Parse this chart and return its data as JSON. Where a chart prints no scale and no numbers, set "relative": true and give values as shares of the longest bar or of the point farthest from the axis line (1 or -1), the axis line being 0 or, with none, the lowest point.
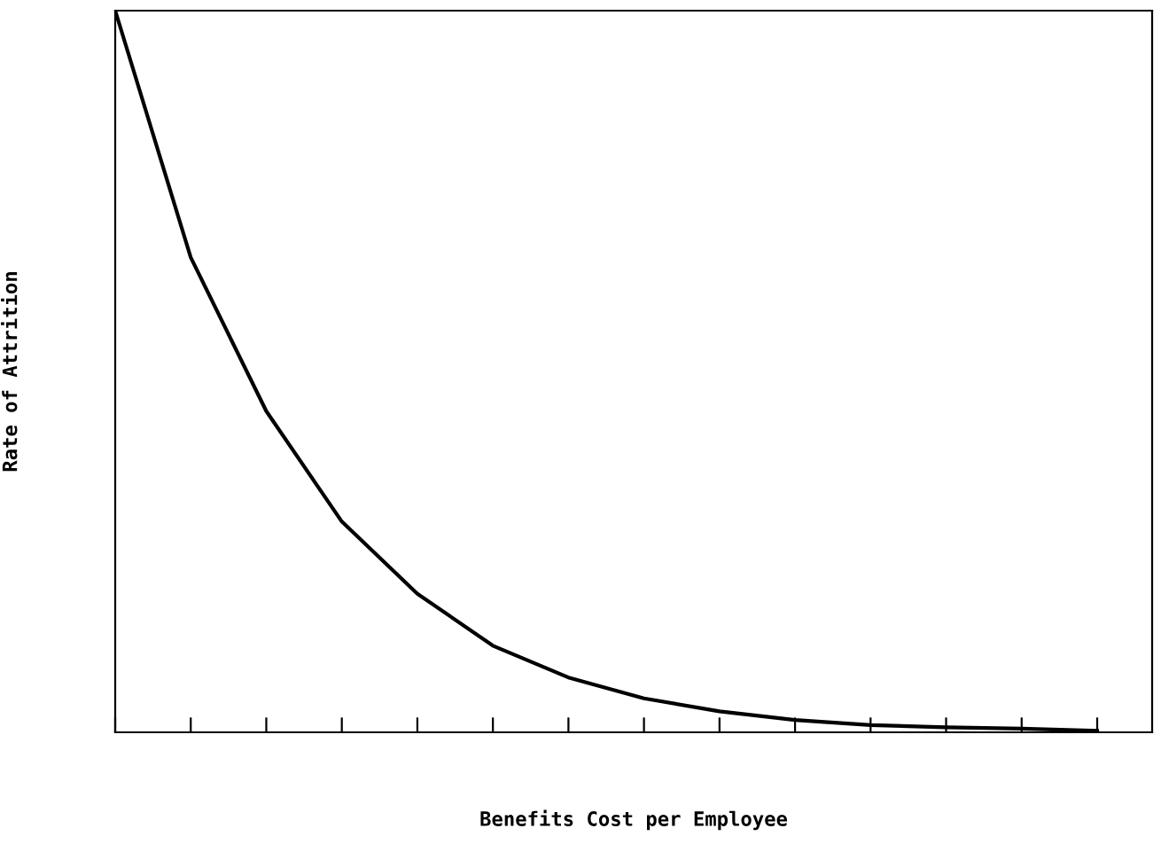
{
  "chart_data": {
    "type": "line",
    "xlabel": "Benefits Cost per Employee",
    "ylabel": "Rate of Attrition",
    "relative": true,
    "categories": [
      null,
      null,
      null,
      null,
      null,
      null,
      null,
      null,
      null,
      null,
      null,
      null,
      null,
      null
    ],
    "series": [
      {
        "color": "#000000",
        "values": [
          1.0,
          0.658,
          0.445,
          0.292,
          0.192,
          0.12,
          0.076,
          0.047,
          0.029,
          0.017,
          0.01,
          0.007,
          0.005,
          0.002
        ]
      }
    ],
    "grid": false,
    "legend": false,
    "marker": "none",
    "line_style": "solid"
  }
}
